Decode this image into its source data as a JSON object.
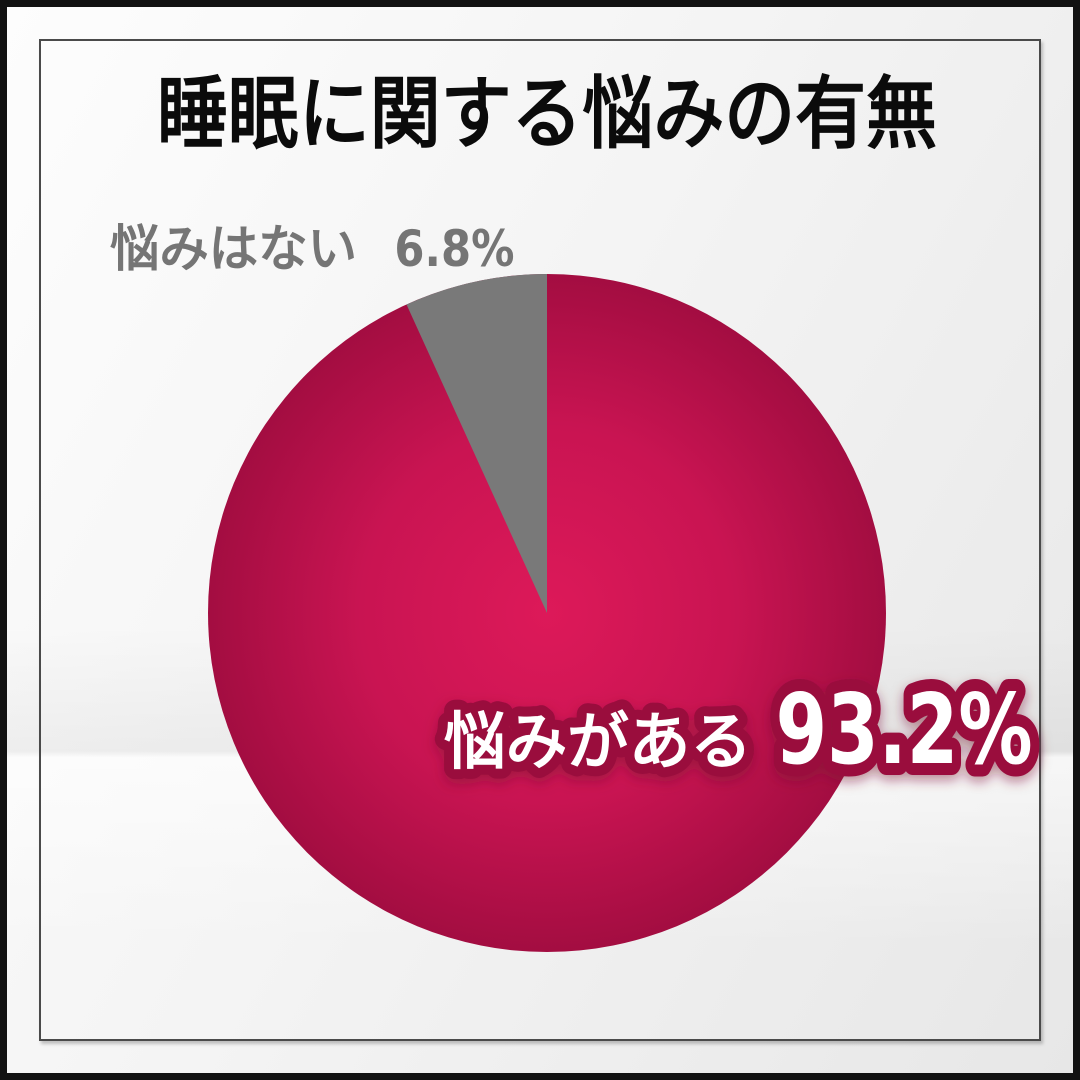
{
  "title": "睡眠に関する悩みの有無",
  "chart_data": {
    "type": "pie",
    "title": "睡眠に関する悩みの有無",
    "categories": [
      "悩みがある",
      "悩みはない"
    ],
    "values": [
      93.2,
      6.8
    ],
    "unit": "%",
    "start_angle_deg": 0,
    "direction": "major-clockwise-from-top, minor-counterclockwise-from-top",
    "legend_position": "labels-on-chart",
    "slices": [
      {
        "label": "悩みがある",
        "value": 93.2,
        "value_display": "93.2%",
        "color": "#c41452"
      },
      {
        "label": "悩みはない",
        "value": 6.8,
        "value_display": "6.8%",
        "color": "#797979"
      }
    ]
  },
  "labels": {
    "major": {
      "text": "悩みがある",
      "pct": "93.2%"
    },
    "minor": {
      "text": "悩みはない",
      "pct": "6.8%"
    }
  },
  "colors": {
    "title_color": "#0b0b0b",
    "pie_center": "#dd1959",
    "pie_mid": "#c91452",
    "pie_edge": "#a30d41",
    "minor_slice": "#797979",
    "minor_label_color": "#757575",
    "major_label_fill": "#ffffff",
    "major_label_stroke": "#9a0c3d",
    "outer_border": "#121212",
    "frame_line": "#4a4a4a"
  }
}
